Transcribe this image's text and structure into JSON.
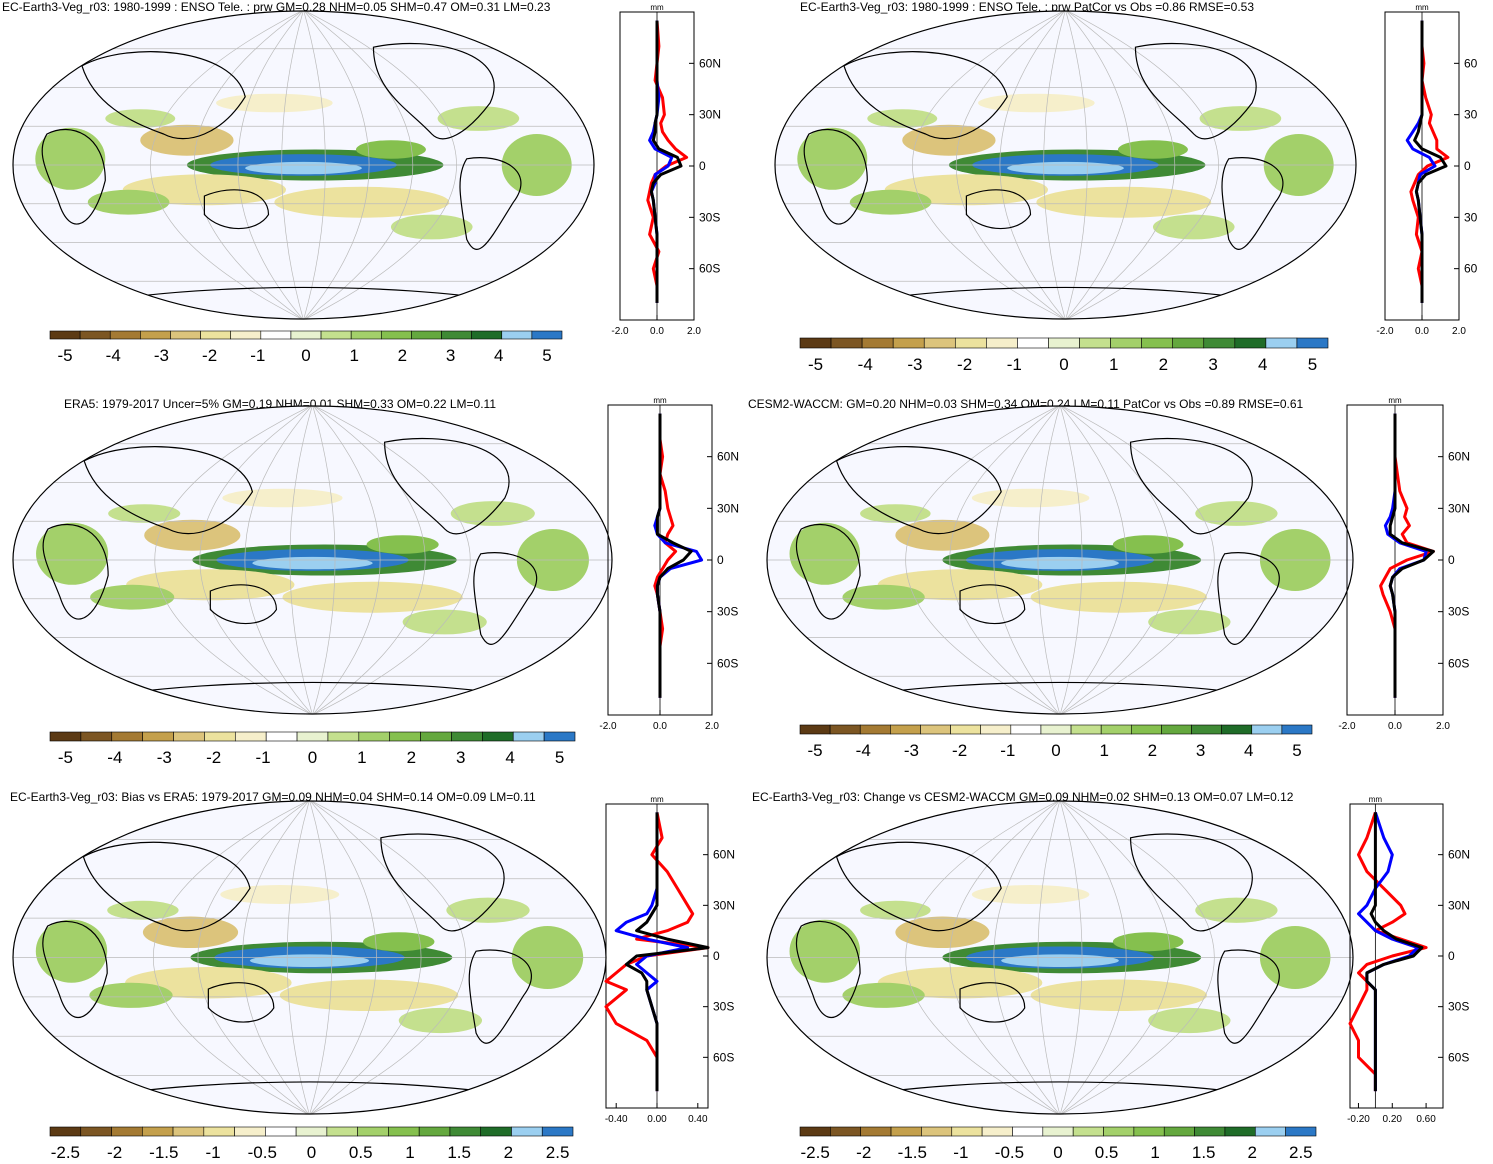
{
  "chart_data": [
    {
      "type": "heatmap",
      "title": "EC-Earth3-Veg_r03: 1980-1999 : ENSO Tele. : prw GM=0.28 NHM=0.05 SHM=0.47 OM=0.31 LM=0.23",
      "colorbar_ticks": [
        "-5",
        "-4",
        "-3",
        "-2",
        "-1",
        "0",
        "1",
        "2",
        "3",
        "4",
        "5"
      ],
      "zonal_profile": {
        "units": "mm",
        "xticks": [
          "-2.0",
          "0.0",
          "2.0"
        ],
        "xlim": [
          -2,
          2
        ],
        "yticks": [
          "60N",
          "30N",
          "0",
          "30S",
          "60S"
        ],
        "lat": [
          85,
          70,
          60,
          50,
          40,
          30,
          25,
          20,
          15,
          10,
          5,
          0,
          -5,
          -10,
          -15,
          -20,
          -30,
          -40,
          -50,
          -60,
          -70,
          -80
        ],
        "series": [
          {
            "color": "#ff0000",
            "values": [
              0.0,
              0.1,
              0.0,
              -0.1,
              0.3,
              0.4,
              0.2,
              0.3,
              0.6,
              1.0,
              1.6,
              0.5,
              -0.1,
              -0.3,
              -0.4,
              -0.5,
              -0.2,
              -0.4,
              0.1,
              -0.2,
              0.0,
              0.0
            ]
          },
          {
            "color": "#0000ff",
            "values": [
              0.0,
              0.0,
              0.0,
              0.0,
              0.1,
              0.0,
              -0.1,
              -0.2,
              -0.4,
              -0.1,
              0.8,
              0.6,
              -0.1,
              -0.1,
              -0.3,
              -0.2,
              -0.1,
              0.0,
              0.0,
              0.0,
              0.0,
              0.0
            ]
          },
          {
            "color": "#000000",
            "values": [
              0.0,
              0.0,
              0.0,
              0.0,
              0.0,
              0.0,
              -0.1,
              -0.1,
              -0.2,
              0.1,
              1.1,
              1.3,
              0.2,
              -0.2,
              -0.3,
              -0.2,
              -0.1,
              0.0,
              0.0,
              0.0,
              0.0,
              0.0
            ]
          }
        ]
      }
    },
    {
      "type": "heatmap",
      "title": "EC-Earth3-Veg_r03: 1980-1999 : ENSO Tele. : prw PatCor vs Obs =0.86 RMSE=0.53",
      "colorbar_ticks": [
        "-5",
        "-4",
        "-3",
        "-2",
        "-1",
        "0",
        "1",
        "2",
        "3",
        "4",
        "5"
      ],
      "zonal_profile": {
        "units": "mm",
        "xticks": [
          "-2.0",
          "0.0",
          "2.0"
        ],
        "xlim": [
          -2,
          2
        ],
        "yticks": [
          "60",
          "30",
          "0",
          "30",
          "60"
        ],
        "lat": [
          85,
          70,
          60,
          50,
          40,
          30,
          25,
          20,
          15,
          10,
          5,
          0,
          -5,
          -10,
          -15,
          -20,
          -30,
          -40,
          -50,
          -60,
          -70,
          -80
        ],
        "series": [
          {
            "color": "#ff0000",
            "values": [
              0.0,
              0.0,
              0.1,
              0.0,
              0.2,
              0.5,
              0.4,
              0.6,
              0.8,
              0.8,
              1.4,
              0.3,
              -0.2,
              -0.4,
              -0.6,
              -0.5,
              -0.2,
              -0.3,
              0.0,
              -0.2,
              0.0,
              0.0
            ]
          },
          {
            "color": "#0000ff",
            "values": [
              0.0,
              0.0,
              0.0,
              0.0,
              0.0,
              0.0,
              -0.2,
              -0.5,
              -0.8,
              -0.5,
              0.4,
              0.7,
              -0.1,
              -0.2,
              -0.3,
              -0.2,
              -0.1,
              0.0,
              0.0,
              0.0,
              0.0,
              0.0
            ]
          },
          {
            "color": "#000000",
            "values": [
              0.0,
              0.0,
              0.0,
              0.0,
              0.0,
              0.0,
              -0.1,
              -0.2,
              -0.4,
              0.0,
              1.0,
              1.3,
              0.2,
              -0.2,
              -0.3,
              -0.2,
              -0.1,
              0.0,
              0.0,
              0.0,
              0.0,
              0.0
            ]
          }
        ]
      }
    },
    {
      "type": "heatmap",
      "title": "ERA5: 1979-2017 Uncer=5% GM=0.19 NHM=0.01 SHM=0.33 OM=0.22 LM=0.11",
      "colorbar_ticks": [
        "-5",
        "-4",
        "-3",
        "-2",
        "-1",
        "0",
        "1",
        "2",
        "3",
        "4",
        "5"
      ],
      "zonal_profile": {
        "units": "mm",
        "xticks": [
          "-2.0",
          "0.0",
          "2.0"
        ],
        "xlim": [
          -2,
          2
        ],
        "yticks": [
          "60N",
          "30N",
          "0",
          "30S",
          "60S"
        ],
        "lat": [
          85,
          70,
          60,
          50,
          40,
          30,
          25,
          20,
          15,
          10,
          5,
          0,
          -5,
          -10,
          -15,
          -20,
          -30,
          -40,
          -50,
          -60,
          -70,
          -80
        ],
        "series": [
          {
            "color": "#ff0000",
            "values": [
              0.0,
              0.0,
              0.1,
              0.0,
              0.2,
              0.3,
              0.4,
              0.5,
              0.3,
              0.2,
              0.6,
              0.3,
              0.1,
              -0.1,
              -0.2,
              -0.1,
              0.0,
              0.1,
              0.0,
              0.0,
              0.0,
              0.0
            ]
          },
          {
            "color": "#0000ff",
            "values": [
              0.0,
              0.0,
              0.0,
              0.0,
              0.0,
              0.0,
              -0.1,
              -0.2,
              -0.1,
              0.2,
              1.4,
              1.6,
              0.4,
              0.0,
              -0.1,
              -0.1,
              0.0,
              0.0,
              0.0,
              0.0,
              0.0,
              0.0
            ]
          },
          {
            "color": "#000000",
            "values": [
              0.0,
              0.0,
              0.0,
              0.0,
              0.0,
              0.0,
              -0.1,
              -0.1,
              -0.1,
              0.5,
              1.2,
              0.9,
              0.3,
              0.0,
              -0.1,
              -0.1,
              0.0,
              0.0,
              0.0,
              0.0,
              0.0,
              0.0
            ]
          }
        ]
      }
    },
    {
      "type": "heatmap",
      "title": "CESM2-WACCM: GM=0.20 NHM=0.03 SHM=0.34 OM=0.24 LM=0.11 PatCor vs Obs =0.89 RMSE=0.61",
      "colorbar_ticks": [
        "-5",
        "-4",
        "-3",
        "-2",
        "-1",
        "0",
        "1",
        "2",
        "3",
        "4",
        "5"
      ],
      "zonal_profile": {
        "units": "mm",
        "xticks": [
          "-2.0",
          "0.0",
          "2.0"
        ],
        "xlim": [
          -2,
          2
        ],
        "yticks": [
          "60N",
          "30N",
          "0",
          "30S",
          "60S"
        ],
        "lat": [
          85,
          70,
          60,
          50,
          40,
          30,
          25,
          20,
          15,
          10,
          5,
          0,
          -5,
          -10,
          -15,
          -20,
          -30,
          -40,
          -50,
          -60,
          -70,
          -80
        ],
        "series": [
          {
            "color": "#ff0000",
            "values": [
              0.0,
              0.0,
              0.0,
              0.1,
              0.2,
              0.5,
              0.4,
              0.6,
              0.3,
              0.5,
              1.6,
              0.5,
              -0.2,
              -0.4,
              -0.6,
              -0.5,
              -0.2,
              0.0,
              0.0,
              0.0,
              0.0,
              0.0
            ]
          },
          {
            "color": "#0000ff",
            "values": [
              0.0,
              0.0,
              0.0,
              0.0,
              0.0,
              -0.1,
              -0.2,
              -0.4,
              -0.3,
              0.2,
              1.3,
              1.2,
              0.2,
              -0.1,
              -0.2,
              -0.1,
              0.0,
              0.0,
              0.0,
              0.0,
              0.0,
              0.0
            ]
          },
          {
            "color": "#000000",
            "values": [
              0.0,
              0.0,
              0.0,
              0.0,
              0.0,
              0.0,
              -0.1,
              -0.2,
              -0.2,
              0.3,
              1.6,
              1.2,
              0.3,
              -0.1,
              -0.2,
              -0.1,
              0.0,
              0.0,
              0.0,
              0.0,
              0.0,
              0.0
            ]
          }
        ]
      }
    },
    {
      "type": "heatmap",
      "title": "EC-Earth3-Veg_r03: Bias vs ERA5: 1979-2017 GM=0.09 NHM=0.04 SHM=0.14 OM=0.09 LM=0.11",
      "colorbar_ticks": [
        "-2.5",
        "-2",
        "-1.5",
        "-1",
        "-0.5",
        "0",
        "0.5",
        "1",
        "1.5",
        "2",
        "2.5"
      ],
      "zonal_profile": {
        "units": "mm",
        "xticks": [
          "-0.40",
          "0.00",
          "0.40"
        ],
        "xlim": [
          -0.5,
          0.5
        ],
        "yticks": [
          "60N",
          "30N",
          "0",
          "30S",
          "60S"
        ],
        "lat": [
          85,
          70,
          60,
          50,
          40,
          30,
          25,
          20,
          15,
          10,
          5,
          0,
          -5,
          -10,
          -15,
          -20,
          -30,
          -40,
          -50,
          -60,
          -70,
          -80
        ],
        "series": [
          {
            "color": "#ff0000",
            "values": [
              0.0,
              0.05,
              -0.05,
              0.1,
              0.2,
              0.3,
              0.35,
              0.3,
              0.1,
              -0.2,
              0.5,
              -0.1,
              -0.3,
              -0.4,
              -0.5,
              -0.3,
              -0.5,
              -0.4,
              -0.1,
              0.0,
              0.0,
              0.0
            ]
          },
          {
            "color": "#0000ff",
            "values": [
              0.0,
              0.0,
              0.0,
              0.0,
              0.0,
              -0.05,
              -0.1,
              -0.3,
              -0.4,
              -0.1,
              0.3,
              -0.1,
              -0.2,
              -0.1,
              0.0,
              -0.1,
              -0.05,
              0.0,
              0.0,
              0.0,
              0.0,
              0.0
            ]
          },
          {
            "color": "#000000",
            "values": [
              0.0,
              0.0,
              0.0,
              0.0,
              0.0,
              0.0,
              -0.05,
              -0.1,
              -0.2,
              0.1,
              0.5,
              -0.2,
              -0.3,
              -0.15,
              -0.1,
              -0.1,
              -0.05,
              0.0,
              0.0,
              0.0,
              0.0,
              0.0
            ]
          }
        ]
      }
    },
    {
      "type": "heatmap",
      "title": "EC-Earth3-Veg_r03: Change vs CESM2-WACCM GM=0.09 NHM=0.02 SHM=0.13 OM=0.07 LM=0.12",
      "colorbar_ticks": [
        "-2.5",
        "-2",
        "-1.5",
        "-1",
        "-0.5",
        "0",
        "0.5",
        "1",
        "1.5",
        "2",
        "2.5"
      ],
      "zonal_profile": {
        "units": "mm",
        "xticks": [
          "-0.20",
          "0.20",
          "0.60"
        ],
        "xlim": [
          -0.3,
          0.8
        ],
        "yticks": [
          "60N",
          "30N",
          "0",
          "30S",
          "60S"
        ],
        "lat": [
          85,
          70,
          60,
          50,
          40,
          30,
          25,
          20,
          15,
          10,
          5,
          0,
          -5,
          -10,
          -15,
          -20,
          -30,
          -40,
          -50,
          -60,
          -70,
          -80
        ],
        "series": [
          {
            "color": "#ff0000",
            "values": [
              0.0,
              -0.1,
              -0.2,
              -0.1,
              0.1,
              0.3,
              0.35,
              0.2,
              0.0,
              0.3,
              0.6,
              0.2,
              -0.1,
              -0.2,
              -0.1,
              -0.1,
              -0.2,
              -0.3,
              -0.2,
              -0.2,
              0.0,
              0.0
            ]
          },
          {
            "color": "#0000ff",
            "values": [
              0.0,
              0.1,
              0.2,
              0.15,
              0.0,
              -0.1,
              -0.2,
              -0.1,
              0.0,
              0.2,
              0.5,
              0.4,
              0.1,
              -0.1,
              -0.1,
              0.0,
              0.0,
              0.0,
              0.0,
              0.0,
              0.0,
              0.0
            ]
          },
          {
            "color": "#000000",
            "values": [
              0.0,
              0.0,
              0.0,
              0.0,
              0.0,
              0.0,
              -0.05,
              0.0,
              0.1,
              0.25,
              0.55,
              0.45,
              0.1,
              -0.1,
              -0.1,
              0.0,
              0.0,
              0.0,
              0.0,
              0.0,
              0.0,
              0.0
            ]
          }
        ]
      }
    }
  ],
  "colors": {
    "colorbar": [
      "#5c3a14",
      "#7c5623",
      "#a47a33",
      "#c4a04c",
      "#dcc47c",
      "#ece29e",
      "#f6efcb",
      "#ffffff",
      "#e8f2d0",
      "#c4e08e",
      "#a3d06a",
      "#85c04e",
      "#64a83e",
      "#3f8a35",
      "#1f6c28",
      "#9bcff0",
      "#2b78c6"
    ],
    "land_outline": "#000000",
    "ocean_base": "#f7f8ff",
    "graticule": "#bbbbbb"
  }
}
